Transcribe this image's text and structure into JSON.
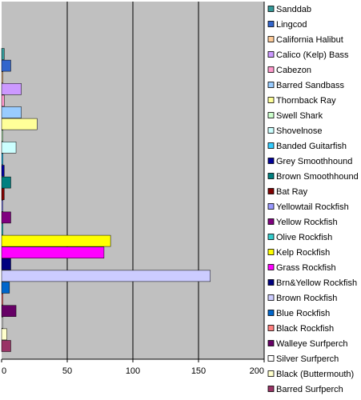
{
  "chart_data": {
    "type": "bar",
    "orientation": "horizontal",
    "title": "",
    "xlabel": "",
    "ylabel": "",
    "xlim": [
      0,
      200
    ],
    "xticks": [
      0,
      50,
      100,
      150,
      200
    ],
    "grid": true,
    "legend_position": "right",
    "plot_background": "#c0c0c0",
    "categories": [
      "Sanddab",
      "Lingcod",
      "California Halibut",
      "Calico (Kelp) Bass",
      "Cabezon",
      "Barred Sandbass",
      "Thornback Ray",
      "Swell Shark",
      "Shovelnose",
      "Banded Guitarfish",
      "Grey Smoothhound",
      "Brown Smoothhound",
      "Bat Ray",
      "Yellowtail Rockfish",
      "Yellow Rockfish",
      "Olive Rockfish",
      "Kelp Rockfish",
      "Grass Rockfish",
      "Brn&Yellow Rockfish",
      "Brown Rockfish",
      "Blue Rockfish",
      "Black Rockfish",
      "Walleye Surfperch",
      "Silver Surfperch",
      "Black (Buttermouth)",
      "Barred Surfperch"
    ],
    "values": [
      2,
      7,
      1,
      15,
      2,
      15,
      27,
      1,
      11,
      1,
      2,
      7,
      2,
      1,
      7,
      1,
      83,
      78,
      7,
      159,
      6,
      1,
      11,
      1,
      4,
      7
    ],
    "colors": [
      "#339999",
      "#3366cc",
      "#ffcc99",
      "#cc99ff",
      "#ff99cc",
      "#99ccff",
      "#ffff99",
      "#ccffcc",
      "#ccffff",
      "#33ccff",
      "#000099",
      "#008080",
      "#800000",
      "#9999ff",
      "#800080",
      "#33cccc",
      "#ffff00",
      "#ff00ff",
      "#000080",
      "#ccccff",
      "#0066cc",
      "#ff8080",
      "#660066",
      "#ffffff",
      "#ffffcc",
      "#993366"
    ]
  }
}
